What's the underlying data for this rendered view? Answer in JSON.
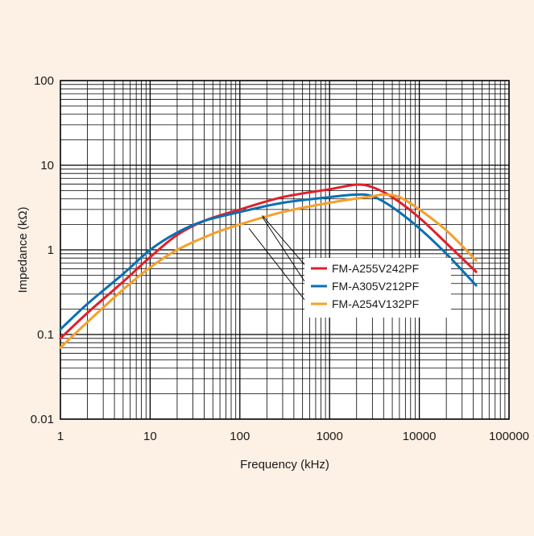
{
  "chart_data": {
    "type": "line",
    "title": "",
    "xlabel": "Frequency (kHz)",
    "ylabel": "Impedance (kΩ)",
    "xscale": "log",
    "yscale": "log",
    "xlim": [
      1,
      100000
    ],
    "ylim": [
      0.01,
      100
    ],
    "x_ticks": [
      "1",
      "10",
      "100",
      "1000",
      "10000",
      "100000"
    ],
    "y_ticks": [
      "0.01",
      "0.1",
      "1",
      "10",
      "100"
    ],
    "grid": true,
    "legend_position": "center-right, with leader lines to curves",
    "series": [
      {
        "name": "FM-A255V242PF",
        "color": "#e0202a",
        "points": [
          [
            1,
            0.09
          ],
          [
            2,
            0.18
          ],
          [
            5,
            0.42
          ],
          [
            10,
            0.82
          ],
          [
            20,
            1.5
          ],
          [
            40,
            2.2
          ],
          [
            100,
            3.0
          ],
          [
            300,
            4.2
          ],
          [
            1000,
            5.2
          ],
          [
            2000,
            5.9
          ],
          [
            3000,
            5.5
          ],
          [
            5000,
            4.2
          ],
          [
            10000,
            2.4
          ],
          [
            20000,
            1.2
          ],
          [
            43000,
            0.55
          ]
        ]
      },
      {
        "name": "FM-A305V212PF",
        "color": "#0a6fb4",
        "points": [
          [
            1,
            0.115
          ],
          [
            2,
            0.23
          ],
          [
            5,
            0.52
          ],
          [
            10,
            1.0
          ],
          [
            20,
            1.6
          ],
          [
            40,
            2.2
          ],
          [
            100,
            2.8
          ],
          [
            300,
            3.6
          ],
          [
            1000,
            4.2
          ],
          [
            2000,
            4.5
          ],
          [
            3000,
            4.3
          ],
          [
            5000,
            3.2
          ],
          [
            10000,
            1.8
          ],
          [
            20000,
            0.9
          ],
          [
            43000,
            0.38
          ]
        ]
      },
      {
        "name": "FM-A254V132PF",
        "color": "#f4a02a",
        "points": [
          [
            1,
            0.07
          ],
          [
            2,
            0.14
          ],
          [
            5,
            0.34
          ],
          [
            10,
            0.62
          ],
          [
            20,
            1.0
          ],
          [
            50,
            1.55
          ],
          [
            100,
            2.0
          ],
          [
            300,
            2.8
          ],
          [
            1000,
            3.6
          ],
          [
            3000,
            4.3
          ],
          [
            4000,
            4.5
          ],
          [
            6000,
            4.2
          ],
          [
            10000,
            3.0
          ],
          [
            20000,
            1.7
          ],
          [
            43000,
            0.75
          ]
        ]
      }
    ]
  }
}
